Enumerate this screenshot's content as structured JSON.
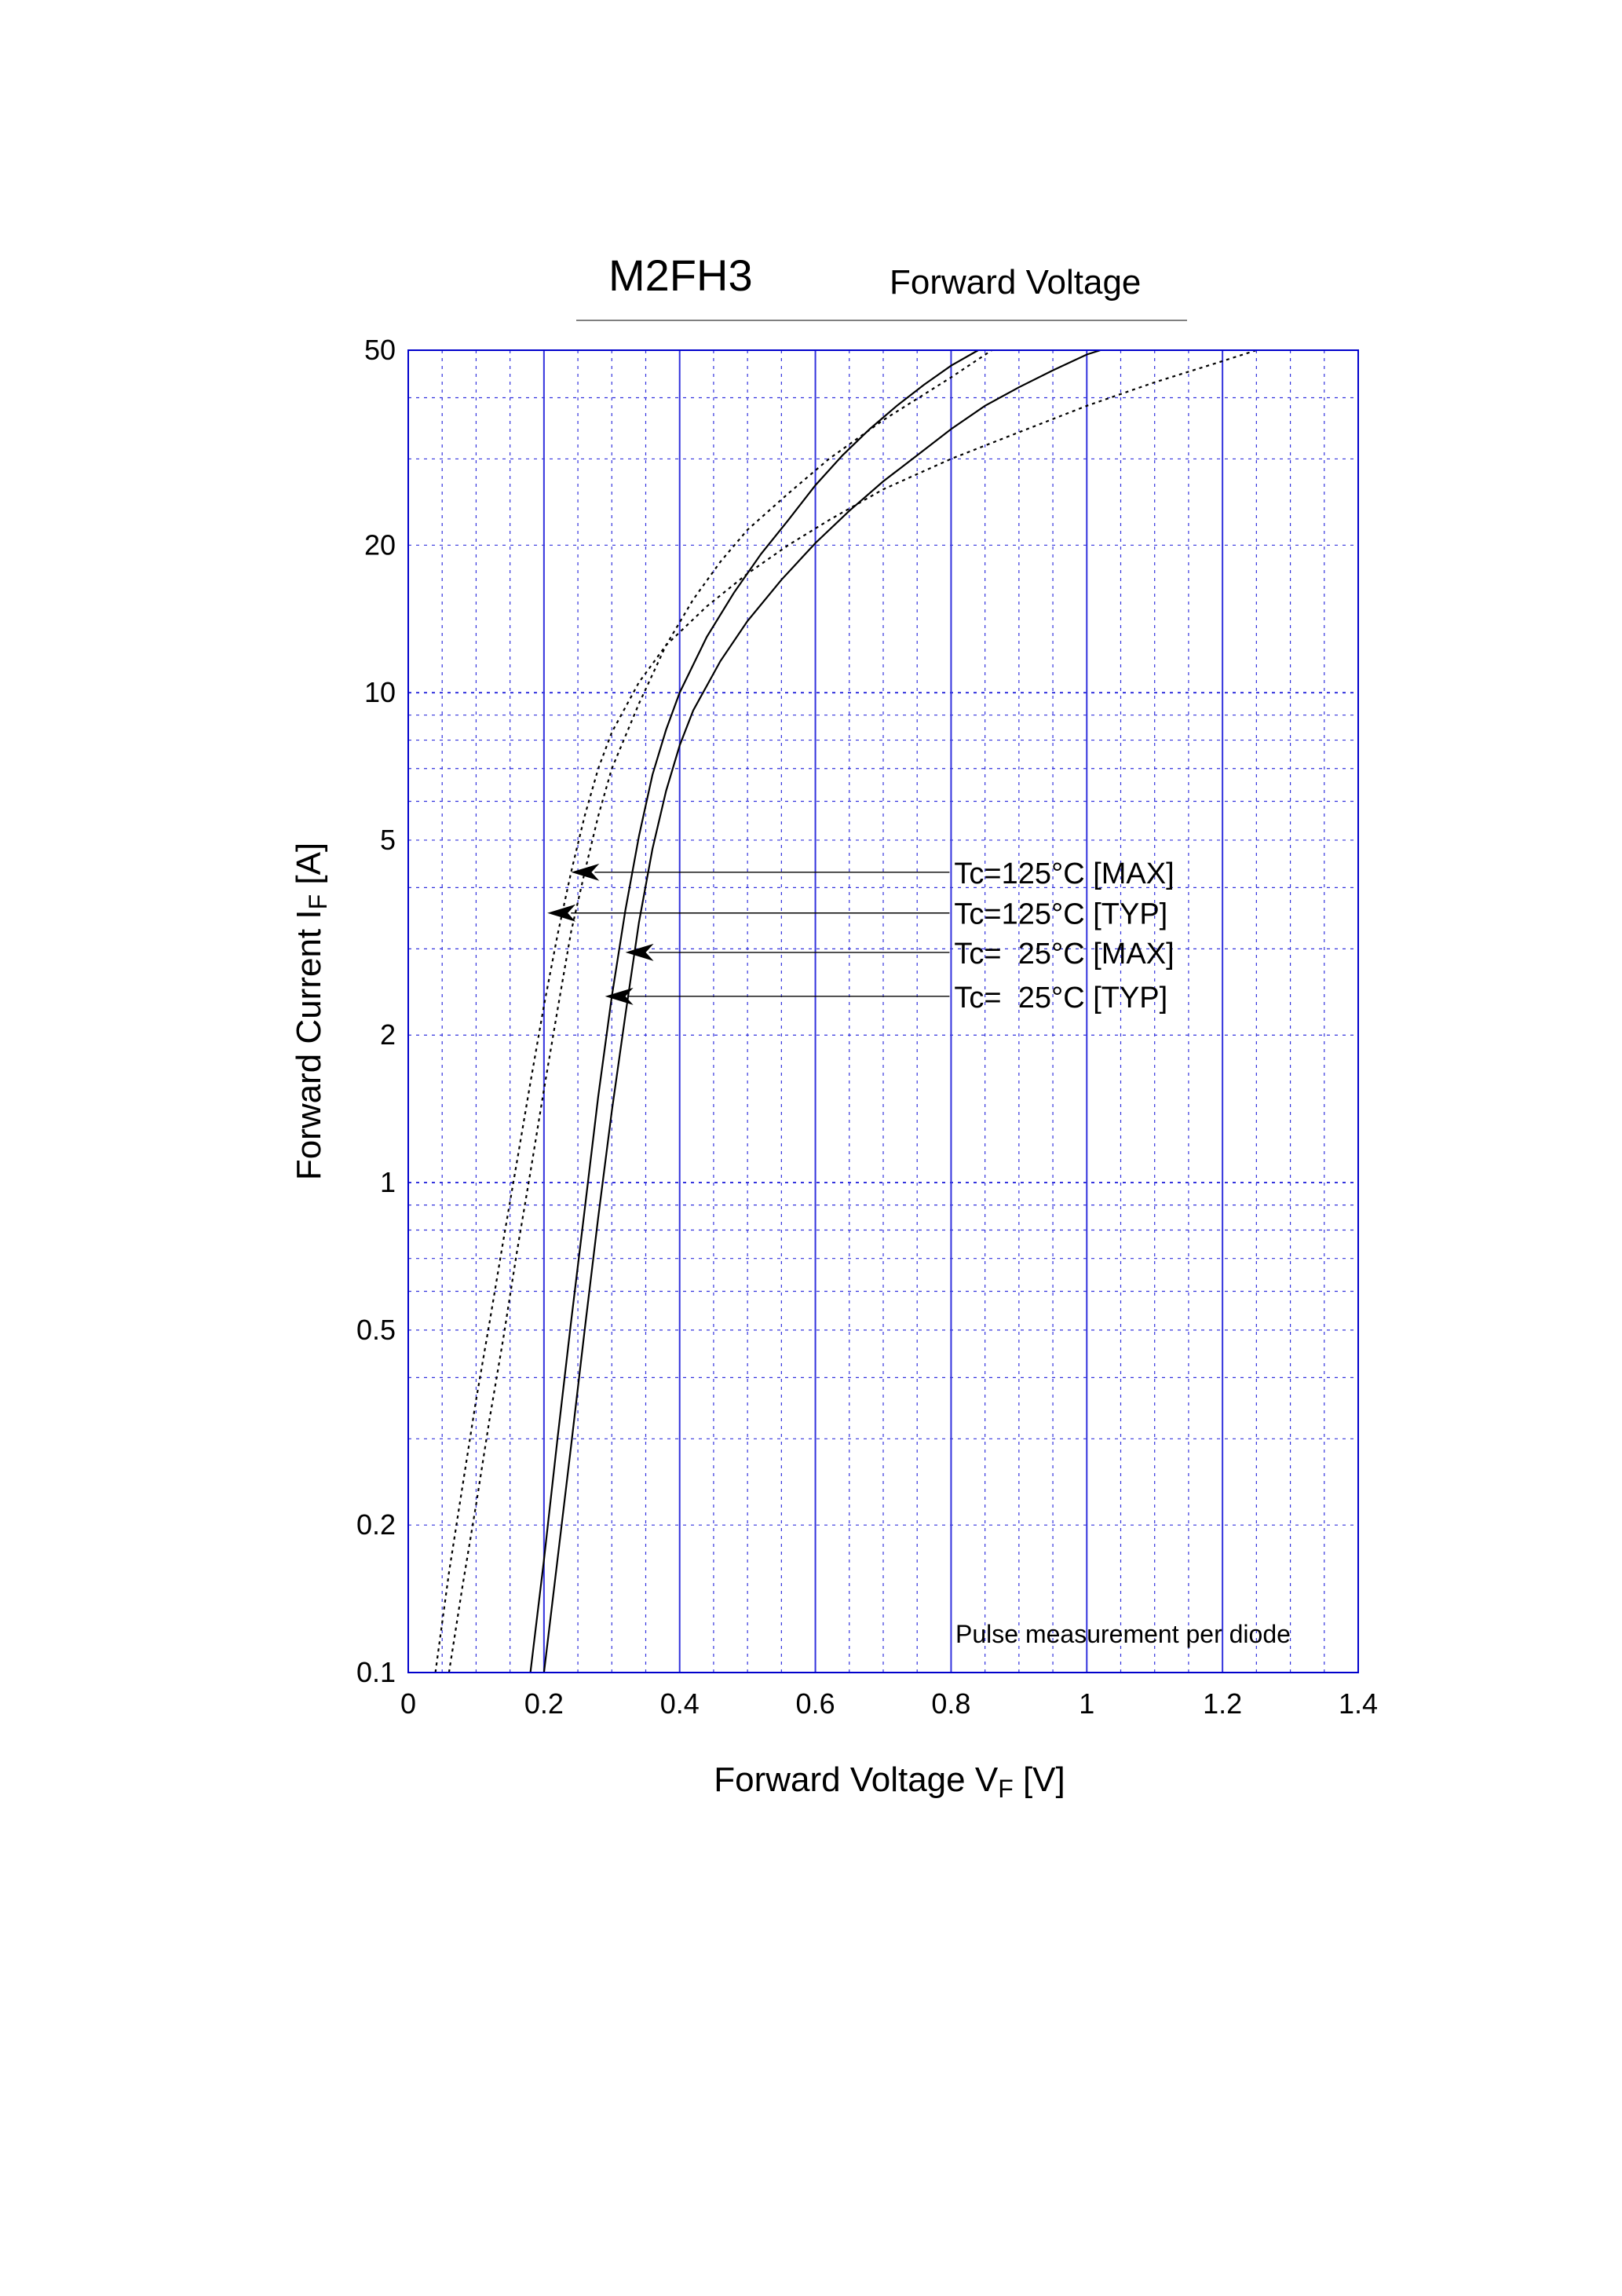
{
  "chart_data": {
    "type": "line",
    "title": "M2FH3",
    "subtitle": "Forward Voltage",
    "xlabel_main": "Forward Voltage  V",
    "xlabel_sub": "F",
    "xlabel_unit": "  [V]",
    "ylabel_main": "Forward Current  I",
    "ylabel_sub": "F",
    "ylabel_unit": "  [A]",
    "xlim": [
      0,
      1.4
    ],
    "ylim": [
      0.1,
      50
    ],
    "y_scale": "log",
    "grid": true,
    "x_ticks": [
      "0",
      "0.2",
      "0.4",
      "0.6",
      "0.8",
      "1",
      "1.2",
      "1.4"
    ],
    "y_ticks": [
      "0.1",
      "0.2",
      "0.5",
      "1",
      "2",
      "5",
      "10",
      "20",
      "50"
    ],
    "note": "Pulse measurement per diode",
    "series": [
      {
        "name": "Tc=125°C [MAX]",
        "style": "dotted",
        "x": [
          0.06,
          0.08,
          0.1,
          0.12,
          0.14,
          0.16,
          0.18,
          0.2,
          0.22,
          0.24,
          0.26,
          0.28,
          0.3,
          0.34,
          0.38,
          0.42,
          0.46,
          0.5,
          0.56,
          0.62,
          0.7,
          0.8,
          0.86
        ],
        "y": [
          0.1,
          0.15,
          0.22,
          0.33,
          0.48,
          0.72,
          1.05,
          1.55,
          2.25,
          3.25,
          4.3,
          5.6,
          7.0,
          9.5,
          12.5,
          15.5,
          18.5,
          21.5,
          25.5,
          30,
          36,
          44,
          50
        ]
      },
      {
        "name": "Tc=125°C [TYP]",
        "style": "dotted",
        "x": [
          0.04,
          0.06,
          0.08,
          0.1,
          0.12,
          0.14,
          0.16,
          0.18,
          0.2,
          0.22,
          0.24,
          0.26,
          0.28,
          0.3,
          0.34,
          0.38,
          0.44,
          0.5,
          0.56,
          0.62,
          0.7,
          0.8,
          0.9,
          1.0,
          1.1,
          1.2,
          1.25
        ],
        "y": [
          0.1,
          0.16,
          0.24,
          0.36,
          0.52,
          0.76,
          1.1,
          1.6,
          2.3,
          3.2,
          4.3,
          5.6,
          7.0,
          8.3,
          10.5,
          12.5,
          15,
          17.5,
          20,
          22.5,
          26,
          30,
          34,
          38.5,
          43,
          47.5,
          50
        ]
      },
      {
        "name": "Tc=  25°C [MAX]",
        "style": "solid",
        "x": [
          0.18,
          0.2,
          0.22,
          0.24,
          0.26,
          0.28,
          0.3,
          0.32,
          0.34,
          0.36,
          0.38,
          0.4,
          0.44,
          0.48,
          0.52,
          0.56,
          0.6,
          0.64,
          0.68,
          0.72,
          0.76,
          0.8,
          0.84
        ],
        "y": [
          0.1,
          0.17,
          0.3,
          0.52,
          0.88,
          1.5,
          2.4,
          3.6,
          5.1,
          6.8,
          8.4,
          10,
          13,
          16,
          19.2,
          22.5,
          26.5,
          30.5,
          34.5,
          38.5,
          42.5,
          46.5,
          50
        ]
      },
      {
        "name": "Tc=  25°C [TYP]",
        "style": "solid",
        "x": [
          0.2,
          0.22,
          0.24,
          0.26,
          0.28,
          0.3,
          0.32,
          0.34,
          0.36,
          0.38,
          0.4,
          0.42,
          0.46,
          0.5,
          0.55,
          0.6,
          0.65,
          0.7,
          0.75,
          0.8,
          0.85,
          0.9,
          0.95,
          1.0,
          1.02
        ],
        "y": [
          0.1,
          0.17,
          0.29,
          0.5,
          0.85,
          1.4,
          2.2,
          3.4,
          4.8,
          6.3,
          7.8,
          9.2,
          11.6,
          14,
          17,
          20.2,
          23.5,
          27,
          30.5,
          34.5,
          38.5,
          42,
          45.5,
          49,
          50
        ]
      }
    ],
    "annotations": [
      {
        "text": "Tc=125°C [MAX]",
        "series": 0,
        "point": [
          0.24,
          4.3
        ]
      },
      {
        "text": "Tc=125°C [TYP]",
        "series": 1,
        "point": [
          0.205,
          3.55
        ]
      },
      {
        "text": "Tc=  25°C [MAX]",
        "series": 2,
        "point": [
          0.32,
          2.95
        ]
      },
      {
        "text": "Tc=  25°C [TYP]",
        "series": 3,
        "point": [
          0.29,
          2.4
        ]
      }
    ]
  }
}
